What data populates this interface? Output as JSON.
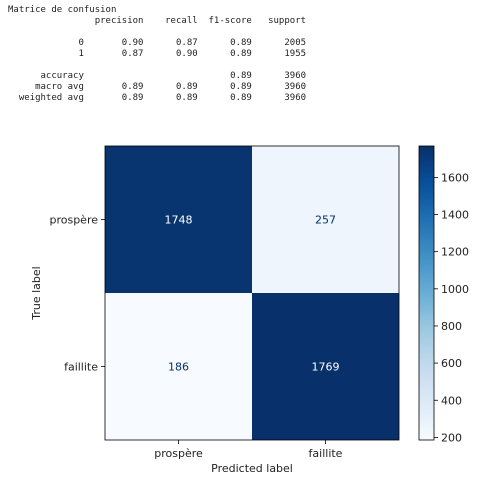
{
  "report": {
    "title": "Matrice de confusion",
    "columns": [
      "precision",
      "recall",
      "f1-score",
      "support"
    ],
    "rows": [
      {
        "label": "0",
        "precision": "0.90",
        "recall": "0.87",
        "f1": "0.89",
        "support": "2005"
      },
      {
        "label": "1",
        "precision": "0.87",
        "recall": "0.90",
        "f1": "0.89",
        "support": "1955"
      },
      {
        "blank": true
      },
      {
        "label": "accuracy",
        "precision": "",
        "recall": "",
        "f1": "0.89",
        "support": "3960"
      },
      {
        "label": "macro avg",
        "precision": "0.89",
        "recall": "0.89",
        "f1": "0.89",
        "support": "3960"
      },
      {
        "label": "weighted avg",
        "precision": "0.89",
        "recall": "0.89",
        "f1": "0.89",
        "support": "3960"
      }
    ]
  },
  "chart_data": {
    "type": "heatmap",
    "title": "",
    "xlabel": "Predicted label",
    "ylabel": "True label",
    "x_categories": [
      "prospère",
      "faillite"
    ],
    "y_categories": [
      "prospère",
      "faillite"
    ],
    "values": [
      [
        1748,
        257
      ],
      [
        186,
        1769
      ]
    ],
    "colormap": "Blues",
    "colorbar": {
      "range": [
        186,
        1769
      ],
      "ticks": [
        200,
        400,
        600,
        800,
        1000,
        1200,
        1400,
        1600
      ]
    },
    "grid": false
  },
  "colors": {
    "low": "#f7fbff",
    "high": "#08306b"
  }
}
